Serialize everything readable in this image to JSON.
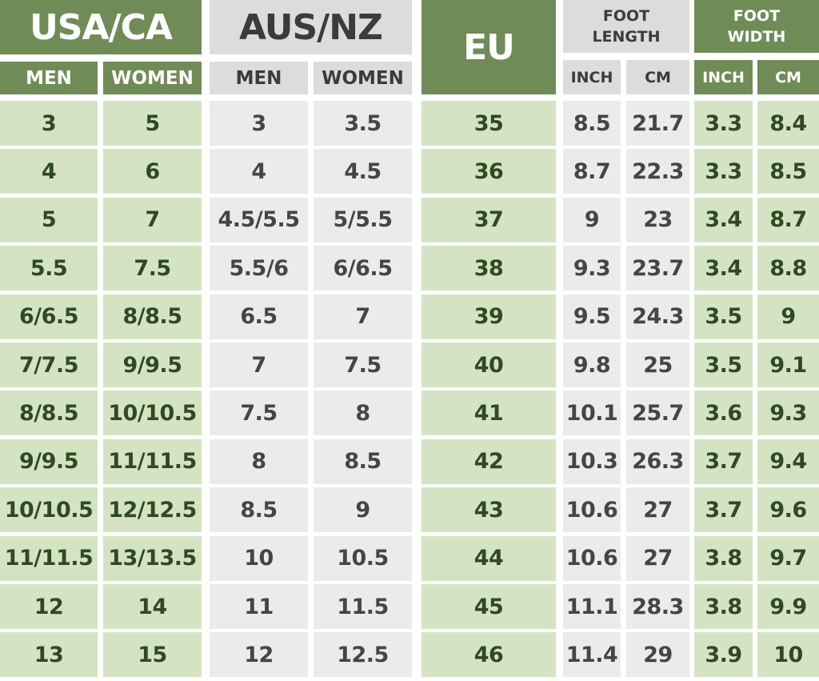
{
  "headers": {
    "usa_ca": "USA/CA",
    "aus_nz": "AUS/NZ",
    "eu": "EU",
    "foot_length": "FOOT LENGTH",
    "foot_width": "FOOT WIDTH",
    "usa_men": "MEN",
    "usa_women": "WOMEN",
    "aus_men": "MEN",
    "aus_women": "WOMEN",
    "fl_inch": "INCH",
    "fl_cm": "CM",
    "fw_inch": "INCH",
    "fw_cm": "CM"
  },
  "colors": {
    "dark_green": "#6f8c56",
    "light_green": "#d4e4c3",
    "light_gray": "#ebebeb",
    "header_gray": "#dcdcdc"
  },
  "rows": [
    [
      "3",
      "5",
      "3",
      "3.5",
      "35",
      "8.5",
      "21.7",
      "3.3",
      "8.4"
    ],
    [
      "4",
      "6",
      "4",
      "4.5",
      "36",
      "8.7",
      "22.3",
      "3.3",
      "8.5"
    ],
    [
      "5",
      "7",
      "4.5/5.5",
      "5/5.5",
      "37",
      "9",
      "23",
      "3.4",
      "8.7"
    ],
    [
      "5.5",
      "7.5",
      "5.5/6",
      "6/6.5",
      "38",
      "9.3",
      "23.7",
      "3.4",
      "8.8"
    ],
    [
      "6/6.5",
      "8/8.5",
      "6.5",
      "7",
      "39",
      "9.5",
      "24.3",
      "3.5",
      "9"
    ],
    [
      "7/7.5",
      "9/9.5",
      "7",
      "7.5",
      "40",
      "9.8",
      "25",
      "3.5",
      "9.1"
    ],
    [
      "8/8.5",
      "10/10.5",
      "7.5",
      "8",
      "41",
      "10.1",
      "25.7",
      "3.6",
      "9.3"
    ],
    [
      "9/9.5",
      "11/11.5",
      "8",
      "8.5",
      "42",
      "10.3",
      "26.3",
      "3.7",
      "9.4"
    ],
    [
      "10/10.5",
      "12/12.5",
      "8.5",
      "9",
      "43",
      "10.6",
      "27",
      "3.7",
      "9.6"
    ],
    [
      "11/11.5",
      "13/13.5",
      "10",
      "10.5",
      "44",
      "10.6",
      "27",
      "3.8",
      "9.7"
    ],
    [
      "12",
      "14",
      "11",
      "11.5",
      "45",
      "11.1",
      "28.3",
      "3.8",
      "9.9"
    ],
    [
      "13",
      "15",
      "12",
      "12.5",
      "46",
      "11.4",
      "29",
      "3.9",
      "10"
    ]
  ]
}
